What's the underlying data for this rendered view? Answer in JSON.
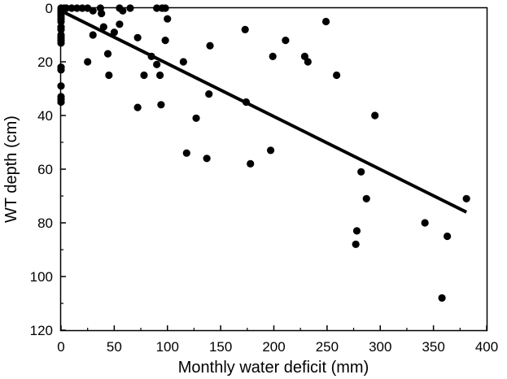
{
  "chart_data": {
    "type": "scatter",
    "xlabel": "Monthly water deficit (mm)",
    "ylabel": "WT depth (cm)",
    "xlim": [
      0,
      400
    ],
    "ylim": [
      0,
      120
    ],
    "y_inverted": true,
    "x_ticks": [
      "0",
      "50",
      "100",
      "150",
      "200",
      "250",
      "300",
      "350",
      "400"
    ],
    "y_ticks": [
      "0",
      "20",
      "40",
      "60",
      "80",
      "100",
      "120"
    ],
    "grid": false,
    "legend": "none",
    "marker_color": "#000000",
    "series": [
      {
        "points": [
          [
            0,
            0
          ],
          [
            0,
            1
          ],
          [
            0,
            2
          ],
          [
            0,
            3
          ],
          [
            0,
            4
          ],
          [
            0,
            5
          ],
          [
            0,
            7
          ],
          [
            0,
            8
          ],
          [
            0,
            10
          ],
          [
            0,
            11
          ],
          [
            0,
            12
          ],
          [
            0,
            13
          ],
          [
            0,
            22
          ],
          [
            0,
            23
          ],
          [
            0,
            29
          ],
          [
            0,
            33
          ],
          [
            0,
            34
          ],
          [
            0,
            35
          ],
          [
            3,
            0
          ],
          [
            5,
            0
          ],
          [
            10,
            0
          ],
          [
            15,
            0
          ],
          [
            20,
            0
          ],
          [
            25,
            0
          ],
          [
            30,
            1
          ],
          [
            37,
            0
          ],
          [
            38,
            2
          ],
          [
            55,
            0
          ],
          [
            58,
            1
          ],
          [
            65,
            0
          ],
          [
            90,
            0
          ],
          [
            95,
            0
          ],
          [
            98,
            0
          ],
          [
            100,
            4
          ],
          [
            25,
            20
          ],
          [
            30,
            10
          ],
          [
            40,
            7
          ],
          [
            44,
            17
          ],
          [
            45,
            25
          ],
          [
            50,
            9
          ],
          [
            55,
            6
          ],
          [
            72,
            11
          ],
          [
            72,
            37
          ],
          [
            78,
            25
          ],
          [
            85,
            18
          ],
          [
            90,
            21
          ],
          [
            93,
            25
          ],
          [
            94,
            36
          ],
          [
            98,
            12
          ],
          [
            115,
            20
          ],
          [
            118,
            54
          ],
          [
            127,
            41
          ],
          [
            137,
            56
          ],
          [
            139,
            32
          ],
          [
            140,
            14
          ],
          [
            173,
            8
          ],
          [
            174,
            35
          ],
          [
            178,
            58
          ],
          [
            197,
            53
          ],
          [
            199,
            18
          ],
          [
            211,
            12
          ],
          [
            229,
            18
          ],
          [
            232,
            20
          ],
          [
            249,
            5
          ],
          [
            259,
            25
          ],
          [
            278,
            83
          ],
          [
            277,
            88
          ],
          [
            282,
            61
          ],
          [
            287,
            71
          ],
          [
            295,
            40
          ],
          [
            342,
            80
          ],
          [
            358,
            108
          ],
          [
            363,
            85
          ],
          [
            381,
            71
          ]
        ]
      }
    ],
    "trendline": {
      "x": [
        0,
        381
      ],
      "y": [
        1,
        76
      ]
    }
  }
}
